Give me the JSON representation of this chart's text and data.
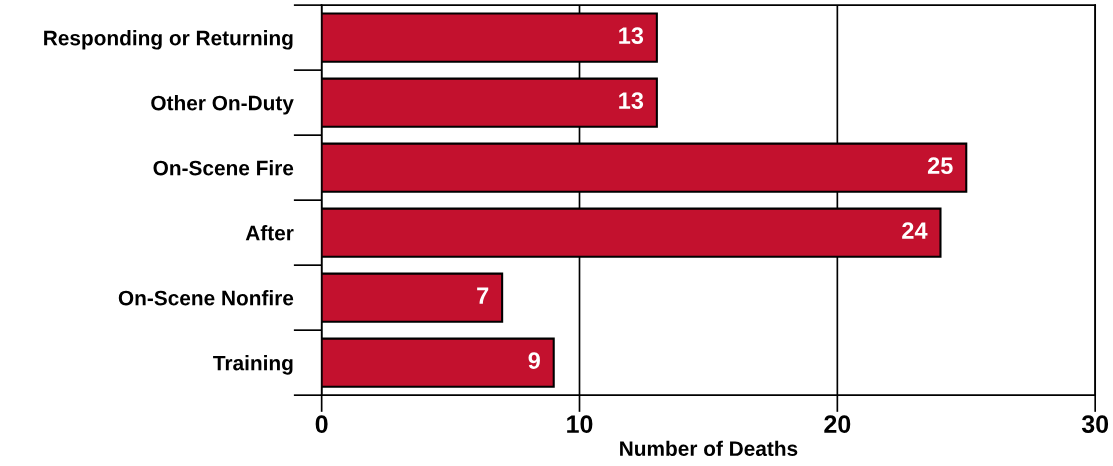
{
  "chart_data": {
    "type": "bar",
    "orientation": "horizontal",
    "xlabel": "Number of Deaths",
    "categories": [
      "Responding or Returning",
      "Other On-Duty",
      "On-Scene Fire",
      "After",
      "On-Scene Nonfire",
      "Training"
    ],
    "values": [
      13,
      13,
      25,
      24,
      7,
      9
    ],
    "color": "#c3112e",
    "xlim": [
      0,
      30
    ],
    "xticks": [
      0,
      10,
      20,
      30
    ],
    "grid": "x",
    "data_labels": true
  }
}
